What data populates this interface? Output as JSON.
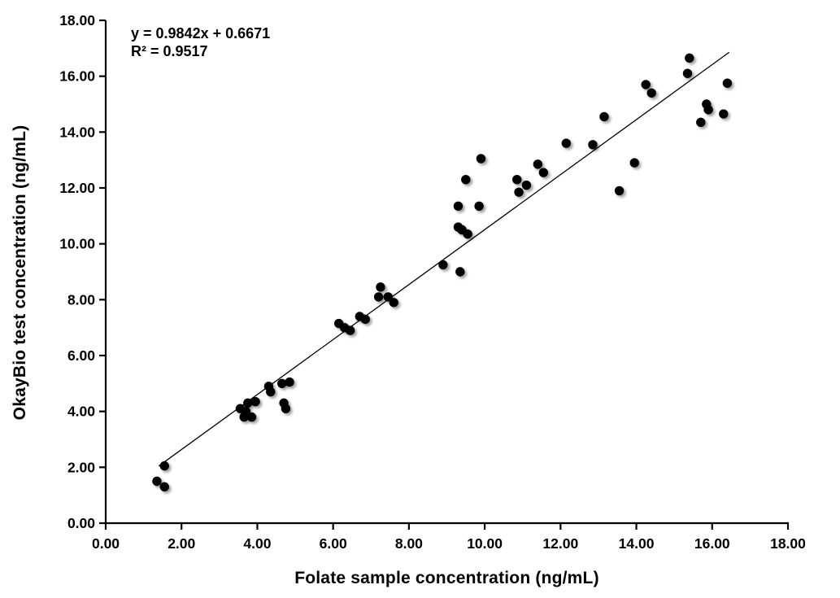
{
  "chart_data": {
    "type": "scatter",
    "title": "",
    "xlabel": "Folate sample concentration (ng/mL)",
    "ylabel": "OkayBio test concentration (ng/mL)",
    "xlim": [
      0,
      18
    ],
    "ylim": [
      0,
      18
    ],
    "xtick_values": [
      0,
      2,
      4,
      6,
      8,
      10,
      12,
      14,
      16,
      18
    ],
    "xtick_labels": [
      "0.00",
      "2.00",
      "4.00",
      "6.00",
      "8.00",
      "10.00",
      "12.00",
      "14.00",
      "16.00",
      "18.00"
    ],
    "ytick_values": [
      0,
      2,
      4,
      6,
      8,
      10,
      12,
      14,
      16,
      18
    ],
    "ytick_labels": [
      "0.00",
      "2.00",
      "4.00",
      "6.00",
      "8.00",
      "10.00",
      "12.00",
      "14.00",
      "16.00",
      "18.00"
    ],
    "grid": false,
    "legend": false,
    "background_color": "#ffffff",
    "axis_color": "#000000",
    "marker_color": "#000000",
    "points": [
      [
        1.35,
        1.5
      ],
      [
        1.55,
        1.3
      ],
      [
        1.55,
        2.05
      ],
      [
        3.55,
        4.1
      ],
      [
        3.65,
        3.8
      ],
      [
        3.7,
        4.0
      ],
      [
        3.75,
        4.3
      ],
      [
        3.85,
        3.8
      ],
      [
        3.95,
        4.35
      ],
      [
        4.3,
        4.9
      ],
      [
        4.35,
        4.7
      ],
      [
        4.65,
        5.0
      ],
      [
        4.7,
        4.3
      ],
      [
        4.75,
        4.1
      ],
      [
        4.85,
        5.05
      ],
      [
        6.15,
        7.15
      ],
      [
        6.3,
        7.0
      ],
      [
        6.45,
        6.9
      ],
      [
        6.7,
        7.4
      ],
      [
        6.85,
        7.3
      ],
      [
        7.2,
        8.1
      ],
      [
        7.25,
        8.45
      ],
      [
        7.45,
        8.1
      ],
      [
        7.6,
        7.9
      ],
      [
        8.9,
        9.25
      ],
      [
        9.3,
        10.6
      ],
      [
        9.3,
        11.35
      ],
      [
        9.35,
        9.0
      ],
      [
        9.4,
        10.5
      ],
      [
        9.5,
        12.3
      ],
      [
        9.55,
        10.35
      ],
      [
        9.85,
        11.35
      ],
      [
        9.9,
        13.05
      ],
      [
        10.85,
        12.3
      ],
      [
        10.9,
        11.85
      ],
      [
        11.1,
        12.1
      ],
      [
        11.4,
        12.85
      ],
      [
        11.55,
        12.55
      ],
      [
        12.15,
        13.6
      ],
      [
        12.85,
        13.55
      ],
      [
        13.15,
        14.55
      ],
      [
        13.55,
        11.9
      ],
      [
        13.95,
        12.9
      ],
      [
        14.25,
        15.7
      ],
      [
        14.4,
        15.4
      ],
      [
        15.35,
        16.1
      ],
      [
        15.4,
        16.65
      ],
      [
        15.7,
        14.35
      ],
      [
        15.85,
        15.0
      ],
      [
        15.9,
        14.8
      ],
      [
        16.3,
        14.65
      ],
      [
        16.4,
        15.75
      ]
    ],
    "trendline": {
      "slope": 0.9842,
      "intercept": 0.6671,
      "x_start": 1.4,
      "x_end": 16.45,
      "equation_label": "y = 0.9842x + 0.6671",
      "r2_label": "R² = 0.9517",
      "color": "#000000"
    }
  }
}
